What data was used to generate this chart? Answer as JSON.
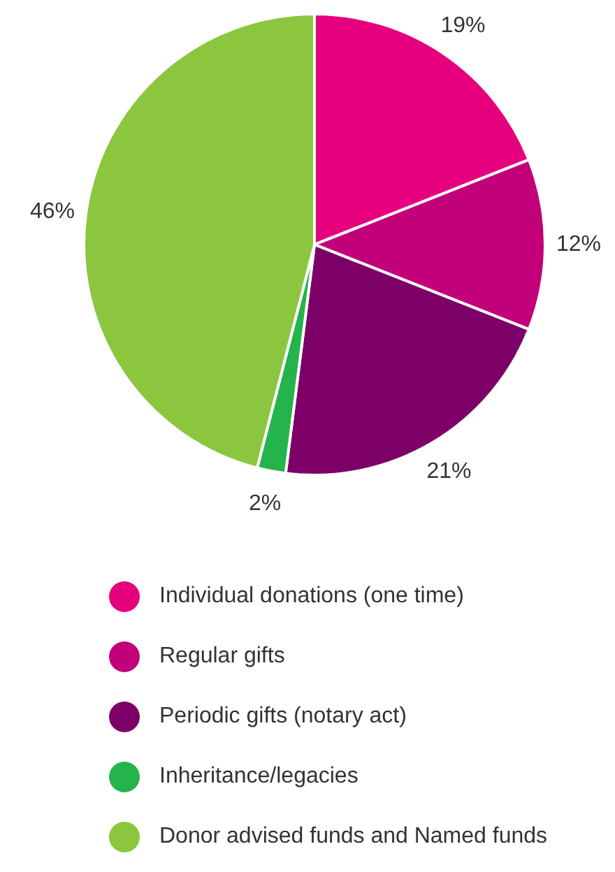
{
  "chart_data": {
    "type": "pie",
    "categories": [
      "Individual donations (one time)",
      "Regular gifts",
      "Periodic gifts (notary act)",
      "Inheritance/legacies",
      "Donor advised funds and Named funds"
    ],
    "values": [
      19,
      12,
      21,
      2,
      46
    ],
    "colors": [
      "#e6007e",
      "#c2007a",
      "#7d0068",
      "#25b34b",
      "#8cc63f"
    ],
    "value_labels": [
      "19%",
      "12%",
      "21%",
      "2%",
      "46%"
    ],
    "legend": "bottom"
  }
}
